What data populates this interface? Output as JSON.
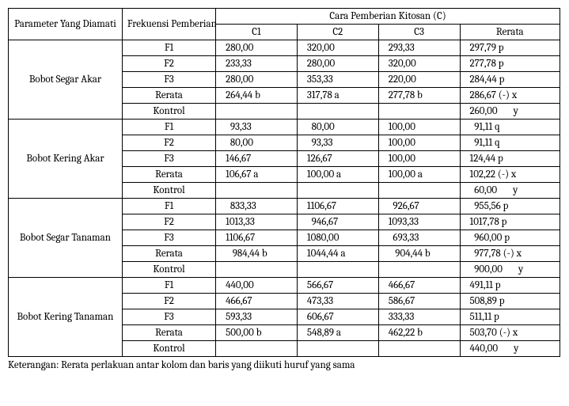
{
  "header": {
    "param": "Parameter Yang Diamati",
    "freq": "Frekuensi Pemberian Kitosan (F)",
    "method": "Cara Pemberian Kitosan (C)",
    "c1": "C1",
    "c2": "C2",
    "c3": "C3",
    "avg": "Rerata"
  },
  "rowLabels": {
    "f1": "F1",
    "f2": "F2",
    "f3": "F3",
    "rerata": "Rerata",
    "kontrol": "Kontrol"
  },
  "groups": [
    {
      "name": "Bobot Segar Akar",
      "rows": [
        {
          "label": "F1",
          "c1": "280,00",
          "c2": "320,00",
          "c3": "293,33",
          "avg": "297,79 p"
        },
        {
          "label": "F2",
          "c1": "233,33",
          "c2": "280,00",
          "c3": "320,00",
          "avg": "277,78 p"
        },
        {
          "label": "F3",
          "c1": "280,00",
          "c2": "353,33",
          "c3": "220,00",
          "avg": "284,44 p"
        },
        {
          "label": "Rerata",
          "c1": "264,44 b",
          "c2": "317,78 a",
          "c3": "277,78 b",
          "avg": "286,67 (-) x"
        },
        {
          "label": "Kontrol",
          "c1": "",
          "c2": "",
          "c3": "",
          "avg": "260,00       y"
        }
      ]
    },
    {
      "name": "Bobot Kering Akar",
      "rows": [
        {
          "label": "F1",
          "c1": "  93,33",
          "c2": "  80,00",
          "c3": "100,00",
          "avg": "  91,11 q"
        },
        {
          "label": "F2",
          "c1": "  80,00",
          "c2": "  93,33",
          "c3": "100,00",
          "avg": "  91,11 q"
        },
        {
          "label": "F3",
          "c1": "146,67",
          "c2": "126,67",
          "c3": "100,00",
          "avg": "124,44 p"
        },
        {
          "label": "Rerata",
          "c1": "106,67 a",
          "c2": "100,00 a",
          "c3": "100,00 a",
          "avg": "102,22 (-) x"
        },
        {
          "label": "Kontrol",
          "c1": "",
          "c2": "",
          "c3": "",
          "avg": "  60,00       y"
        }
      ]
    },
    {
      "name": "Bobot Segar Tanaman",
      "rows": [
        {
          "label": "F1",
          "c1": "  833,33",
          "c2": "1106,67",
          "c3": "  926,67",
          "avg": "  955,56 p"
        },
        {
          "label": "F2",
          "c1": "1013,33",
          "c2": "  946,67",
          "c3": "1093,33",
          "avg": "1017,78 p"
        },
        {
          "label": "F3",
          "c1": "1106,67",
          "c2": "1080,00",
          "c3": "  693,33",
          "avg": "  960,00 p"
        },
        {
          "label": "Rerata",
          "c1": "   984,44 b",
          "c2": "1044,44 a",
          "c3": "   904,44 b",
          "avg": "  977,78 (-) x"
        },
        {
          "label": "Kontrol",
          "c1": "",
          "c2": "",
          "c3": "",
          "avg": "  900,00       y"
        }
      ]
    },
    {
      "name": "Bobot Kering Tanaman",
      "rows": [
        {
          "label": "F1",
          "c1": "440,00",
          "c2": "566,67",
          "c3": "466,67",
          "avg": "491,11 p"
        },
        {
          "label": "F2",
          "c1": "466,67",
          "c2": "473,33",
          "c3": "586,67",
          "avg": "508,89 p"
        },
        {
          "label": "F3",
          "c1": "593,33",
          "c2": "606,67",
          "c3": "333,33",
          "avg": "511,11 p"
        },
        {
          "label": "Rerata",
          "c1": "500,00 b",
          "c2": "548,89 a",
          "c3": "462,22 b",
          "avg": "503,70 (-) x"
        },
        {
          "label": "Kontrol",
          "c1": "",
          "c2": "",
          "c3": "",
          "avg": "440,00       y"
        }
      ]
    }
  ],
  "caption": "Keterangan:  Rerata  perlakuan  antar  kolom  dan  baris  yang  diikuti  huruf  yang  sama"
}
